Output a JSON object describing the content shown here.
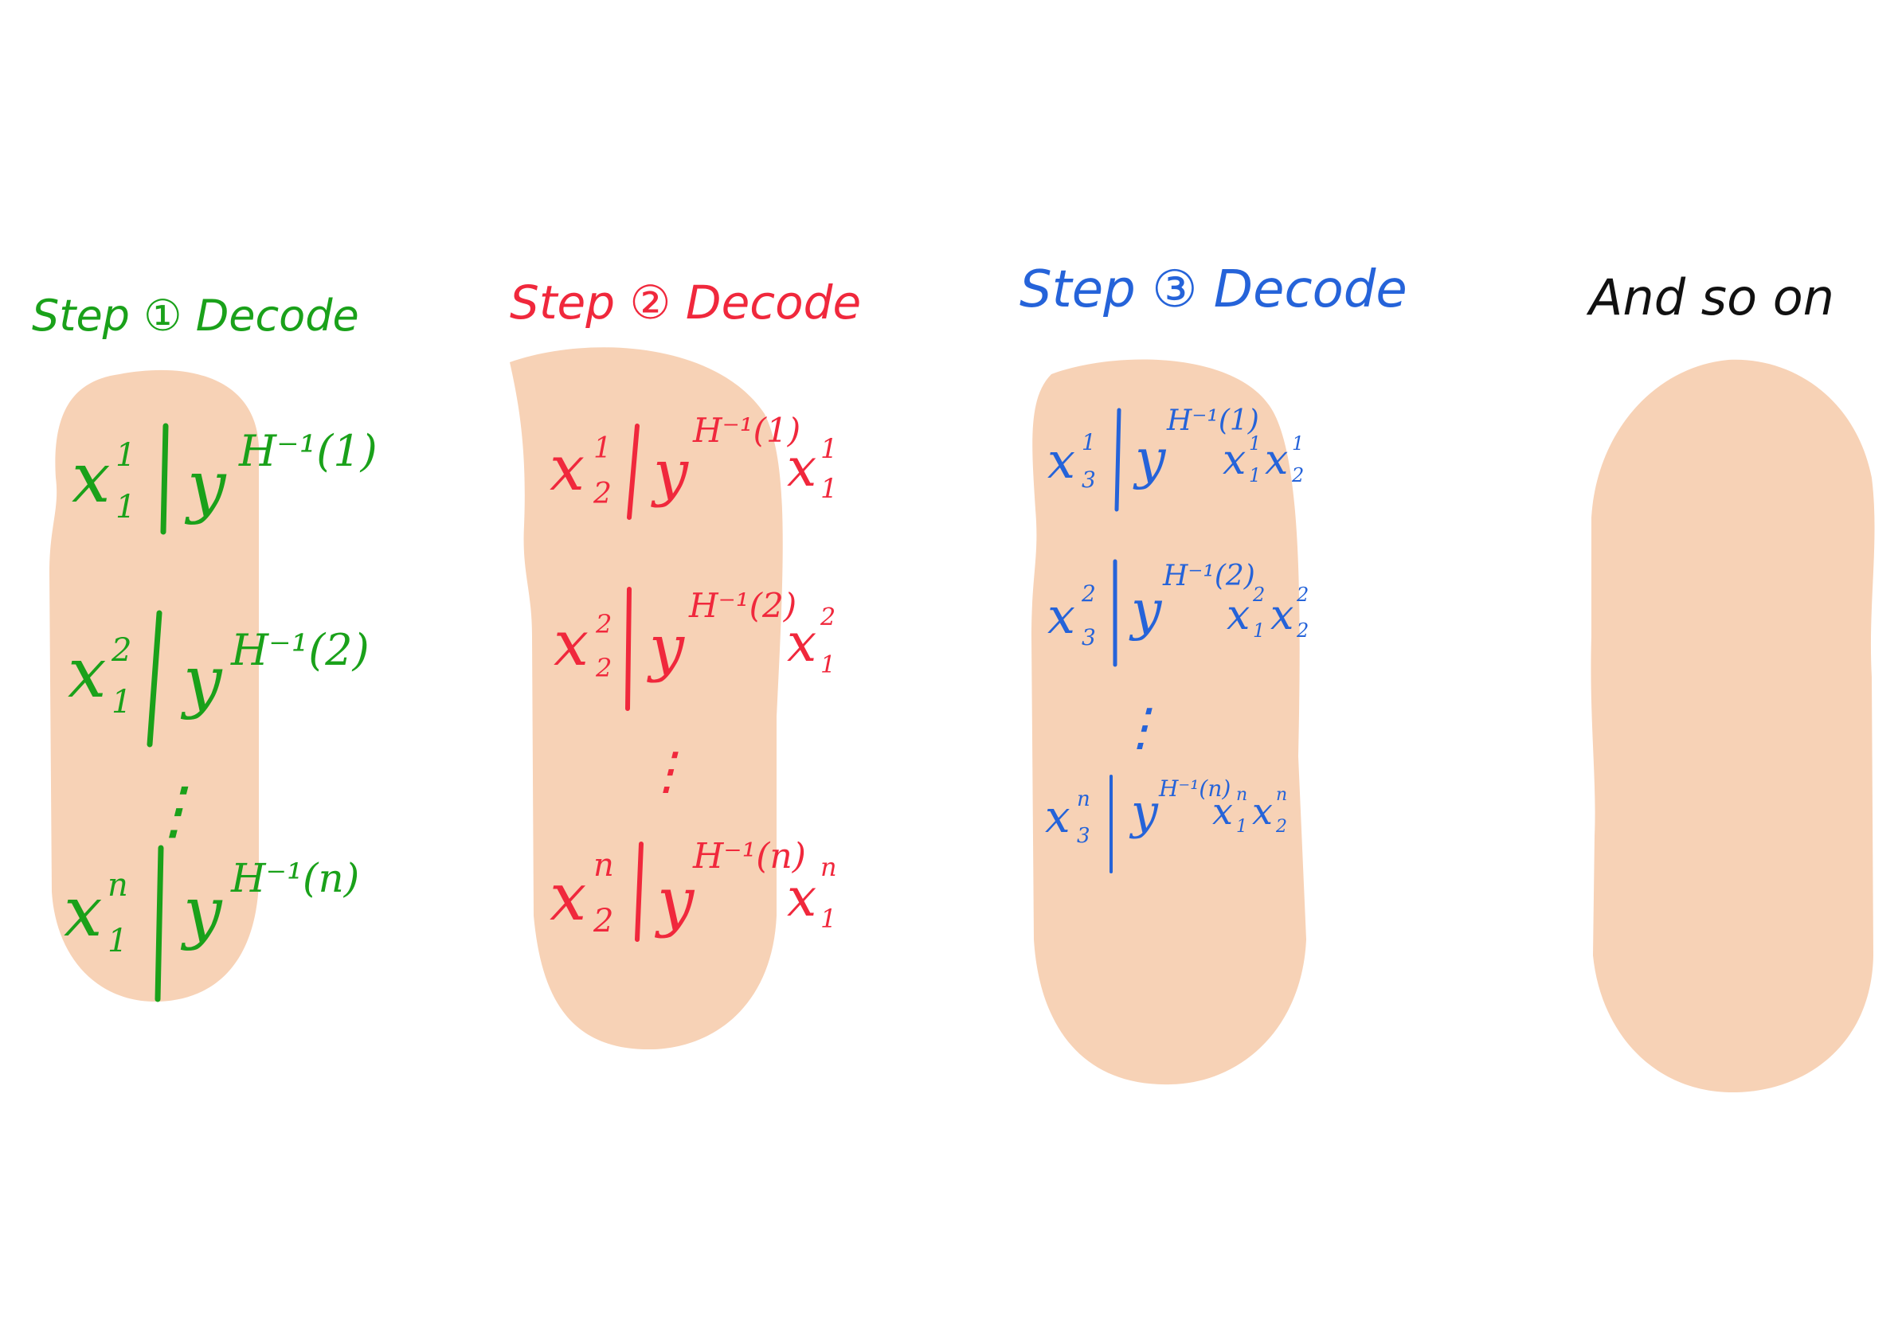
{
  "colors": {
    "blob": "#f7d2b6",
    "step1": "#1aa11a",
    "step2": "#f0283c",
    "step3": "#2563d9",
    "step4": "#111111",
    "background": "#ffffff"
  },
  "steps": [
    {
      "title": "Step ① Decode",
      "rows": [
        {
          "var": "x",
          "sub": "1",
          "sup": "1",
          "cond": "y",
          "cond_sup": "H⁻¹(1)",
          "prev": []
        },
        {
          "var": "x",
          "sub": "1",
          "sup": "2",
          "cond": "y",
          "cond_sup": "H⁻¹(2)",
          "prev": []
        },
        {
          "var": "x",
          "sub": "1",
          "sup": "n",
          "cond": "y",
          "cond_sup": "H⁻¹(n)",
          "prev": []
        }
      ],
      "ellipsis": "⋮"
    },
    {
      "title": "Step ② Decode",
      "rows": [
        {
          "var": "x",
          "sub": "2",
          "sup": "1",
          "cond": "y",
          "cond_sup": "H⁻¹(1)",
          "prev": [
            {
              "var": "x",
              "sub": "1",
              "sup": "1"
            }
          ]
        },
        {
          "var": "x",
          "sub": "2",
          "sup": "2",
          "cond": "y",
          "cond_sup": "H⁻¹(2)",
          "prev": [
            {
              "var": "x",
              "sub": "1",
              "sup": "2"
            }
          ]
        },
        {
          "var": "x",
          "sub": "2",
          "sup": "n",
          "cond": "y",
          "cond_sup": "H⁻¹(n)",
          "prev": [
            {
              "var": "x",
              "sub": "1",
              "sup": "n"
            }
          ]
        }
      ],
      "ellipsis": "⋮"
    },
    {
      "title": "Step ③ Decode",
      "rows": [
        {
          "var": "x",
          "sub": "3",
          "sup": "1",
          "cond": "y",
          "cond_sup": "H⁻¹(1)",
          "prev": [
            {
              "var": "x",
              "sub": "1",
              "sup": "1"
            },
            {
              "var": "x",
              "sub": "2",
              "sup": "1"
            }
          ]
        },
        {
          "var": "x",
          "sub": "3",
          "sup": "2",
          "cond": "y",
          "cond_sup": "H⁻¹(2)",
          "prev": [
            {
              "var": "x",
              "sub": "1",
              "sup": "2"
            },
            {
              "var": "x",
              "sub": "2",
              "sup": "2"
            }
          ]
        },
        {
          "var": "x",
          "sub": "3",
          "sup": "n",
          "cond": "y",
          "cond_sup": "H⁻¹(n)",
          "prev": [
            {
              "var": "x",
              "sub": "1",
              "sup": "n"
            },
            {
              "var": "x",
              "sub": "2",
              "sup": "n"
            }
          ]
        }
      ],
      "ellipsis": "⋮"
    },
    {
      "title": "And so on",
      "rows": [],
      "ellipsis": ""
    }
  ]
}
